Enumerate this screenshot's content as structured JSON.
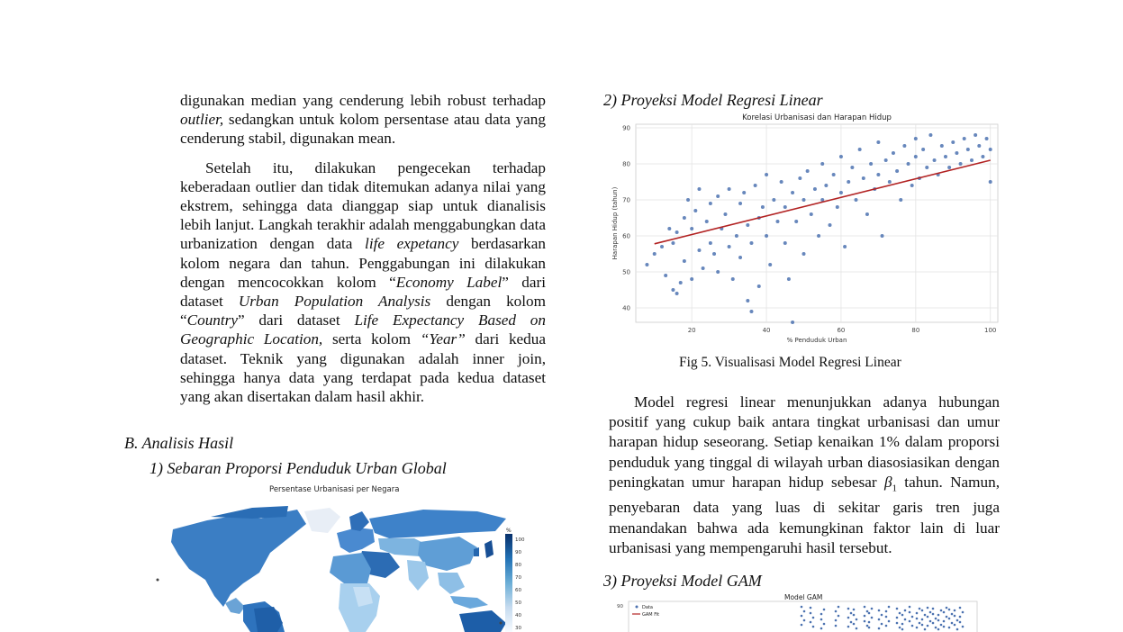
{
  "left_column": {
    "para1": [
      "digunakan median yang cenderung lebih robust terhadap ",
      "outlier,",
      " sedangkan untuk kolom persentase atau data yang cenderung stabil, digunakan mean."
    ],
    "para2": {
      "t1": "Setelah itu, dilakukan pengecekan terhadap keberadaan outlier dan tidak ditemukan adanya nilai yang ekstrem, sehingga data dianggap siap untuk dianalisis lebih lanjut. Langkah terakhir adalah menggabungkan data urbanization dengan data ",
      "i1": "life expetancy",
      "t2": " berdasarkan kolom negara dan tahun. Penggabungan ini dilakukan dengan mencocokkan kolom “",
      "i2": "Economy Label",
      "t3": "” dari dataset ",
      "i3": "Urban Population Analysis",
      "t4": " dengan kolom “",
      "i4": "Country",
      "t5": "” dari dataset ",
      "i5": "Life Expectancy Based on Geographic Location,",
      "t6": " serta kolom ",
      "i6": "“Year”",
      "t7": " dari kedua dataset. Teknik yang digunakan adalah inner join, sehingga hanya data yang terdapat pada kedua dataset yang akan disertakan dalam hasil akhir."
    },
    "section_b": "B.  Analisis Hasil",
    "sub1": "1)  Sebaran Proporsi Penduduk Urban Global",
    "map_title": "Persentase Urbanisasi per Negara",
    "colorbar_label": "%",
    "colorbar_ticks": [
      "100",
      "90",
      "80",
      "70",
      "60",
      "50",
      "40",
      "30"
    ]
  },
  "right_column": {
    "sub2": "2)  Proyeksi Model Regresi Linear",
    "fig5_caption": "Fig 5. Visualisasi Model Regresi Linear",
    "para3": {
      "t1": "Model regresi linear menunjukkan adanya hubungan positif yang cukup baik antara tingkat urbanisasi dan umur harapan hidup seseorang. Setiap kenaikan 1% dalam proporsi penduduk yang tinggal di wilayah urban diasosiasikan dengan peningkatan umur harapan hidup sebesar ",
      "beta": "β",
      "beta_sub": "1",
      "t2": " tahun. Namun, penyebaran data yang luas di sekitar garis tren juga menandakan bahwa ada kemungkinan faktor lain di luar urbanisasi yang mempengaruhi hasil tersebut."
    },
    "sub3": "3)  Proyeksi Model GAM",
    "gam_title": "Model GAM",
    "gam_legend": [
      "Data",
      "GAM Fit"
    ],
    "gam_ytick": "90"
  },
  "chart_data": [
    {
      "type": "scatter",
      "title": "Korelasi Urbanisasi dan Harapan Hidup",
      "xlabel": "% Penduduk Urban",
      "ylabel": "Harapan Hidup (tahun)",
      "xlim": [
        5,
        102
      ],
      "ylim": [
        36,
        91
      ],
      "xticks": [
        20,
        40,
        60,
        80,
        100
      ],
      "yticks": [
        40,
        50,
        60,
        70,
        80,
        90
      ],
      "grid": true,
      "point_color": "#4c72b0",
      "line_color": "#b22222",
      "regression_line": {
        "x": [
          10,
          100
        ],
        "y": [
          57.8,
          81.0
        ]
      },
      "series": [
        {
          "values": [
            [
              8,
              52
            ],
            [
              10,
              55
            ],
            [
              12,
              57
            ],
            [
              13,
              49
            ],
            [
              14,
              62
            ],
            [
              15,
              45
            ],
            [
              15,
              58
            ],
            [
              16,
              44
            ],
            [
              16,
              61
            ],
            [
              17,
              47
            ],
            [
              18,
              65
            ],
            [
              18,
              53
            ],
            [
              19,
              70
            ],
            [
              20,
              62
            ],
            [
              20,
              48
            ],
            [
              21,
              67
            ],
            [
              22,
              56
            ],
            [
              22,
              73
            ],
            [
              23,
              51
            ],
            [
              24,
              64
            ],
            [
              25,
              69
            ],
            [
              25,
              58
            ],
            [
              26,
              55
            ],
            [
              27,
              71
            ],
            [
              27,
              50
            ],
            [
              28,
              62
            ],
            [
              29,
              66
            ],
            [
              30,
              73
            ],
            [
              30,
              57
            ],
            [
              31,
              48
            ],
            [
              32,
              60
            ],
            [
              33,
              69
            ],
            [
              33,
              54
            ],
            [
              34,
              72
            ],
            [
              35,
              42
            ],
            [
              35,
              63
            ],
            [
              36,
              39
            ],
            [
              36,
              58
            ],
            [
              37,
              74
            ],
            [
              38,
              65
            ],
            [
              38,
              46
            ],
            [
              39,
              68
            ],
            [
              40,
              60
            ],
            [
              40,
              77
            ],
            [
              41,
              52
            ],
            [
              42,
              70
            ],
            [
              43,
              64
            ],
            [
              44,
              75
            ],
            [
              45,
              58
            ],
            [
              45,
              68
            ],
            [
              46,
              48
            ],
            [
              47,
              72
            ],
            [
              47,
              36
            ],
            [
              48,
              64
            ],
            [
              49,
              76
            ],
            [
              50,
              70
            ],
            [
              50,
              55
            ],
            [
              51,
              78
            ],
            [
              52,
              66
            ],
            [
              53,
              73
            ],
            [
              54,
              60
            ],
            [
              55,
              80
            ],
            [
              55,
              70
            ],
            [
              56,
              74
            ],
            [
              57,
              63
            ],
            [
              58,
              77
            ],
            [
              59,
              68
            ],
            [
              60,
              82
            ],
            [
              60,
              72
            ],
            [
              61,
              57
            ],
            [
              62,
              75
            ],
            [
              63,
              79
            ],
            [
              64,
              70
            ],
            [
              65,
              84
            ],
            [
              66,
              76
            ],
            [
              67,
              66
            ],
            [
              68,
              80
            ],
            [
              69,
              73
            ],
            [
              70,
              86
            ],
            [
              70,
              77
            ],
            [
              71,
              60
            ],
            [
              72,
              81
            ],
            [
              73,
              75
            ],
            [
              74,
              83
            ],
            [
              75,
              78
            ],
            [
              76,
              70
            ],
            [
              77,
              85
            ],
            [
              78,
              80
            ],
            [
              79,
              74
            ],
            [
              80,
              87
            ],
            [
              80,
              82
            ],
            [
              81,
              76
            ],
            [
              82,
              84
            ],
            [
              83,
              79
            ],
            [
              84,
              88
            ],
            [
              85,
              81
            ],
            [
              86,
              77
            ],
            [
              87,
              85
            ],
            [
              88,
              82
            ],
            [
              89,
              79
            ],
            [
              90,
              86
            ],
            [
              91,
              83
            ],
            [
              92,
              80
            ],
            [
              93,
              87
            ],
            [
              94,
              84
            ],
            [
              95,
              81
            ],
            [
              96,
              88
            ],
            [
              97,
              85
            ],
            [
              98,
              82
            ],
            [
              99,
              87
            ],
            [
              100,
              84
            ],
            [
              100,
              75
            ]
          ]
        }
      ]
    }
  ]
}
